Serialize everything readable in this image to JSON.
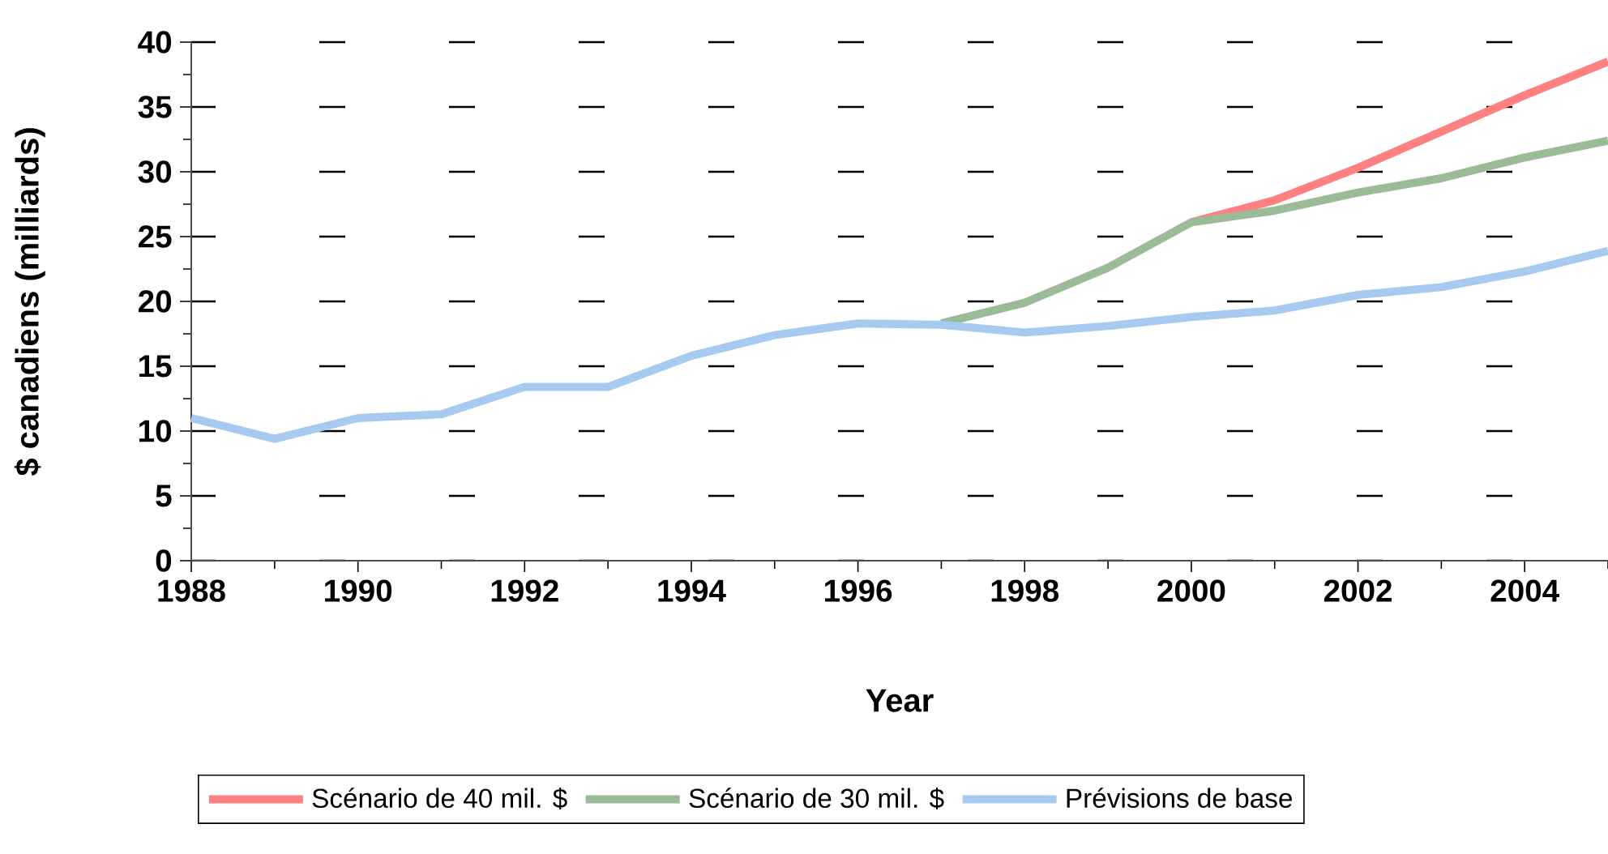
{
  "chart_data": {
    "type": "line",
    "xlabel": "Year",
    "ylabel": "$ canadiens (milliards)",
    "xlim": [
      1988,
      2005
    ],
    "ylim": [
      0,
      40
    ],
    "xticks": [
      1988,
      {
        "value": 1989,
        "label": null
      },
      1990,
      {
        "value": 1991,
        "label": null
      },
      1992,
      {
        "value": 1993,
        "label": null
      },
      1994,
      {
        "value": 1995,
        "label": null
      },
      1996,
      {
        "value": 1997,
        "label": null
      },
      1998,
      {
        "value": 1999,
        "label": null
      },
      2000,
      {
        "value": 2001,
        "label": null
      },
      2002,
      {
        "value": 2003,
        "label": null
      },
      2004,
      {
        "value": 2005,
        "label": null
      }
    ],
    "yticks": [
      0,
      {
        "value": 2.5,
        "label": null
      },
      5,
      {
        "value": 7.5,
        "label": null
      },
      10,
      {
        "value": 12.5,
        "label": null
      },
      15,
      {
        "value": 17.5,
        "label": null
      },
      20,
      {
        "value": 22.5,
        "label": null
      },
      25,
      {
        "value": 27.5,
        "label": null
      },
      30,
      {
        "value": 32.5,
        "label": null
      },
      35,
      {
        "value": 37.5,
        "label": null
      },
      40
    ],
    "grid": "y",
    "legend": "bottom",
    "series": [
      {
        "name": "Scénario de 40 mil. $",
        "color": "#ff8080",
        "x": [
          2000,
          2001,
          2002,
          2003,
          2004,
          2005
        ],
        "values": [
          26.1,
          27.8,
          30.3,
          33.1,
          35.9,
          38.5
        ]
      },
      {
        "name": "Scénario de 30 mil. $",
        "color": "#9bbb98",
        "x": [
          1997,
          1998,
          1999,
          2000,
          2001,
          2002,
          2003,
          2004,
          2005
        ],
        "values": [
          18.3,
          19.9,
          22.6,
          26.1,
          27.0,
          28.4,
          29.5,
          31.1,
          32.4
        ]
      },
      {
        "name": "Prévisions de base",
        "color": "#a6caf0",
        "x": [
          1988,
          1989,
          1990,
          1991,
          1992,
          1993,
          1994,
          1995,
          1996,
          1997,
          1998,
          1999,
          2000,
          2001,
          2002,
          2003,
          2004,
          2005
        ],
        "values": [
          11.0,
          9.4,
          11.0,
          11.3,
          13.4,
          13.4,
          15.8,
          17.4,
          18.3,
          18.2,
          17.6,
          18.1,
          18.8,
          19.3,
          20.5,
          21.1,
          22.3,
          23.9
        ]
      }
    ]
  }
}
